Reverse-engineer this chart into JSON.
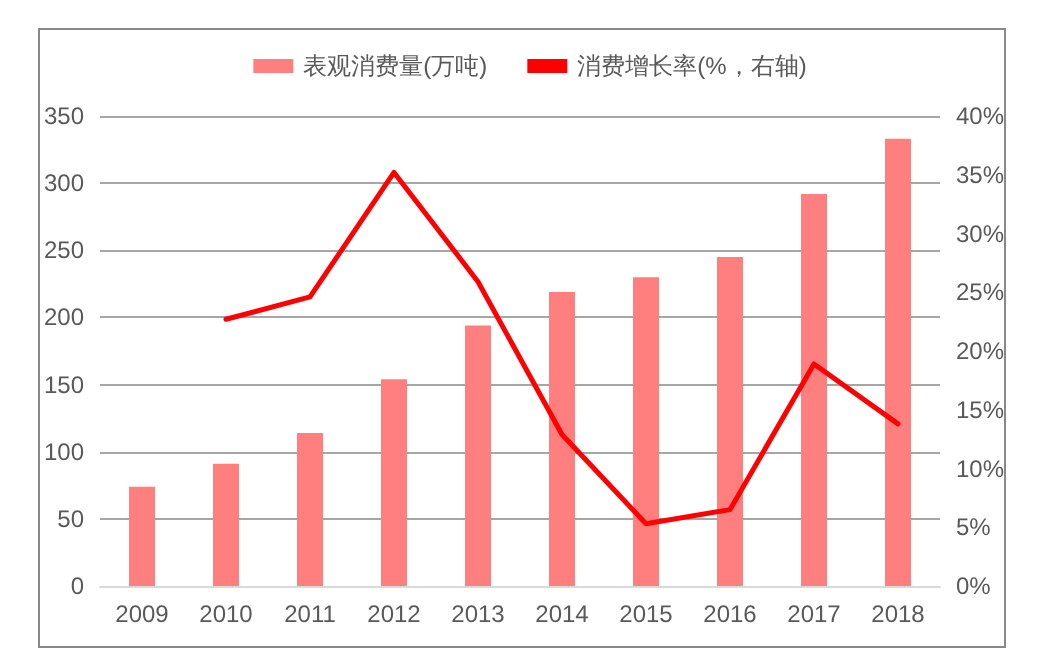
{
  "chart_data": {
    "type": "bar",
    "categories": [
      "2009",
      "2010",
      "2011",
      "2012",
      "2013",
      "2014",
      "2015",
      "2016",
      "2017",
      "2018"
    ],
    "series": [
      {
        "name": "表观消费量(万吨)",
        "color": "#ff7f7f",
        "values": [
          74,
          91,
          114,
          154,
          194,
          219,
          230,
          245,
          292,
          333
        ]
      },
      {
        "name": "消费增长率(%，右轴)",
        "type": "line",
        "axis": "y2",
        "color": "#ff0000",
        "values": [
          null,
          22.7,
          24.6,
          35.2,
          25.9,
          12.9,
          5.3,
          6.5,
          18.9,
          13.8
        ]
      }
    ],
    "ylim": [
      0,
      350
    ],
    "yticks": [
      0,
      50,
      100,
      150,
      200,
      250,
      300,
      350
    ],
    "y2lim": [
      0,
      40
    ],
    "y2ticks": [
      {
        "value": 0,
        "label": "0%"
      },
      {
        "value": 5,
        "label": "5%"
      },
      {
        "value": 10,
        "label": "10%"
      },
      {
        "value": 15,
        "label": "15%"
      },
      {
        "value": 20,
        "label": "20%"
      },
      {
        "value": 25,
        "label": "25%"
      },
      {
        "value": 30,
        "label": "30%"
      },
      {
        "value": 35,
        "label": "35%"
      },
      {
        "value": 40,
        "label": "40%"
      }
    ],
    "grid": "y",
    "legend": "top",
    "marker": "none"
  }
}
